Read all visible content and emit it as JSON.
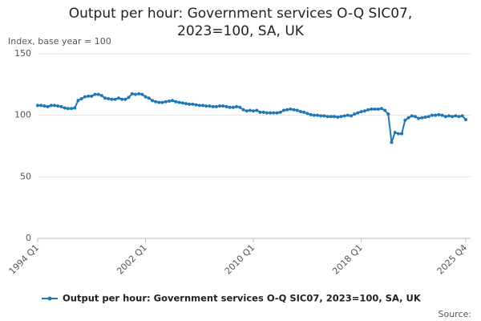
{
  "chart_data": {
    "type": "line",
    "title": "Output per hour: Government services O-Q SIC07, 2023=100, SA, UK",
    "y_label": "Index, base year = 100",
    "source": "Source:",
    "categories": [
      "1994 Q1",
      null,
      null,
      null,
      null,
      null,
      null,
      null,
      null,
      null,
      null,
      null,
      null,
      null,
      null,
      null,
      null,
      null,
      null,
      null,
      null,
      null,
      null,
      null,
      null,
      null,
      null,
      null,
      null,
      null,
      null,
      null,
      "2002 Q1",
      null,
      null,
      null,
      null,
      null,
      null,
      null,
      null,
      null,
      null,
      null,
      null,
      null,
      null,
      null,
      null,
      null,
      null,
      null,
      null,
      null,
      null,
      null,
      null,
      null,
      null,
      null,
      null,
      null,
      null,
      null,
      "2010 Q1",
      null,
      null,
      null,
      null,
      null,
      null,
      null,
      null,
      null,
      null,
      null,
      null,
      null,
      null,
      null,
      null,
      null,
      null,
      null,
      null,
      null,
      null,
      null,
      null,
      null,
      null,
      null,
      null,
      null,
      null,
      null,
      "2018 Q1",
      null,
      null,
      null,
      null,
      null,
      null,
      null,
      null,
      null,
      null,
      null,
      null,
      null,
      null,
      null,
      null,
      null,
      null,
      null,
      null,
      null,
      null,
      null,
      null,
      null,
      null,
      null,
      null,
      null,
      null,
      "2025 Q4"
    ],
    "series": [
      {
        "name": "Output per hour: Government services O-Q SIC07, 2023=100, SA, UK",
        "color": "#1f78b4",
        "values": [
          108,
          108,
          107.5,
          107,
          108,
          108,
          107.5,
          107,
          106,
          105.5,
          105.5,
          106,
          112,
          113.5,
          115,
          115.5,
          115.5,
          117,
          117,
          116,
          114,
          113.5,
          113,
          113,
          114,
          113,
          113,
          114.5,
          117.5,
          117,
          117.5,
          117,
          115,
          114,
          112,
          111,
          110.5,
          110.5,
          111,
          111.5,
          112,
          111,
          110.5,
          110,
          109.5,
          109,
          109,
          108.5,
          108,
          108,
          107.5,
          107.5,
          107,
          107,
          107.5,
          107.5,
          107,
          106.5,
          106.5,
          107,
          106.5,
          104.5,
          103.5,
          104,
          103.5,
          104,
          102.5,
          102.5,
          102,
          102,
          102,
          102,
          102.5,
          104,
          104.5,
          105,
          104.5,
          104,
          103,
          102.5,
          101.5,
          100.5,
          100,
          100,
          99.5,
          99.5,
          99,
          99,
          99,
          98.5,
          99,
          99.5,
          100,
          99.5,
          101,
          102,
          103,
          103.5,
          104.5,
          105,
          105,
          105,
          105.5,
          104,
          101,
          78,
          86,
          85,
          85,
          96,
          98,
          99.5,
          99,
          97.5,
          98,
          98.5,
          99,
          100,
          100,
          100.5,
          100,
          99,
          99.5,
          99,
          99.5,
          99,
          99.5,
          96.5
        ]
      }
    ],
    "ylim": [
      0,
      150
    ],
    "yticks": [
      0,
      50,
      100,
      150
    ],
    "grid": true
  }
}
